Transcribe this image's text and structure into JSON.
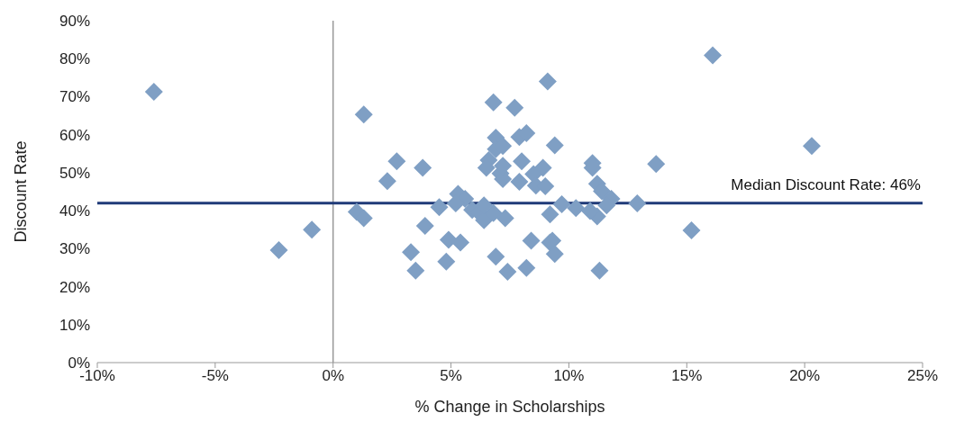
{
  "chart_data": {
    "type": "scatter",
    "xlabel": "% Change in Scholarships",
    "ylabel": "Discount Rate",
    "marker": "diamond",
    "xlim": [
      -10,
      25
    ],
    "xticks": [
      {
        "value": -10,
        "label": "-10%"
      },
      {
        "value": -5,
        "label": "-5%"
      },
      {
        "value": 0,
        "label": "0%"
      },
      {
        "value": 5,
        "label": "5%"
      },
      {
        "value": 10,
        "label": "10%"
      },
      {
        "value": 15,
        "label": "15%"
      },
      {
        "value": 20,
        "label": "20%"
      },
      {
        "value": 25,
        "label": "25%"
      }
    ],
    "ylim": [
      0,
      90
    ],
    "yticks": [
      {
        "value": 0,
        "label": "0%"
      },
      {
        "value": 10,
        "label": "10%"
      },
      {
        "value": 20,
        "label": "20%"
      },
      {
        "value": 30,
        "label": "30%"
      },
      {
        "value": 40,
        "label": "40%"
      },
      {
        "value": 50,
        "label": "50%"
      },
      {
        "value": 60,
        "label": "60%"
      },
      {
        "value": 70,
        "label": "70%"
      },
      {
        "value": 80,
        "label": "80%"
      },
      {
        "value": 90,
        "label": "90%"
      }
    ],
    "series": [
      {
        "color": "#7f9fc4",
        "x": [
          -7.6,
          -2.3,
          -0.9,
          1.3,
          1.0,
          1.3,
          2.7,
          2.3,
          3.3,
          3.5,
          3.9,
          4.5,
          3.8,
          4.8,
          4.9,
          5.4,
          5.3,
          5.6,
          5.2,
          5.9,
          6.2,
          6.4,
          6.8,
          6.4,
          6.8,
          6.9,
          6.9,
          7.2,
          6.6,
          6.5,
          7.1,
          7.2,
          7.2,
          7.3,
          6.9,
          7.4,
          7.7,
          7.9,
          8.2,
          8.0,
          7.9,
          8.2,
          8.4,
          8.5,
          8.6,
          8.9,
          9.0,
          9.1,
          9.4,
          9.2,
          9.2,
          9.3,
          9.4,
          9.7,
          10.3,
          11.0,
          11.0,
          11.2,
          11.4,
          11.8,
          11.2,
          10.9,
          11.3,
          11.6,
          12.9,
          13.7,
          15.2,
          16.1,
          20.3
        ],
        "values": [
          71.3,
          29.6,
          35.0,
          65.3,
          39.7,
          38.0,
          53.0,
          47.8,
          29.1,
          24.2,
          36.0,
          40.9,
          51.3,
          26.6,
          32.3,
          31.6,
          44.4,
          43.1,
          41.9,
          40.2,
          39.4,
          37.5,
          39.4,
          41.4,
          68.5,
          59.2,
          56.2,
          57.0,
          53.3,
          51.3,
          49.8,
          48.3,
          51.8,
          38.0,
          27.9,
          23.9,
          67.1,
          59.4,
          60.4,
          53.0,
          47.6,
          24.9,
          32.1,
          49.6,
          46.6,
          51.3,
          46.4,
          74.0,
          57.2,
          39.0,
          31.6,
          32.1,
          28.6,
          41.7,
          40.7,
          52.5,
          51.3,
          47.1,
          45.1,
          43.1,
          38.5,
          39.9,
          24.2,
          41.4,
          41.9,
          52.3,
          34.8,
          80.9,
          57.0
        ]
      }
    ],
    "ref_lines": [
      {
        "axis": "y",
        "value": 42,
        "color": "#1f3a78"
      }
    ],
    "annotations": [
      "Median Discount Rate: 46%"
    ]
  }
}
